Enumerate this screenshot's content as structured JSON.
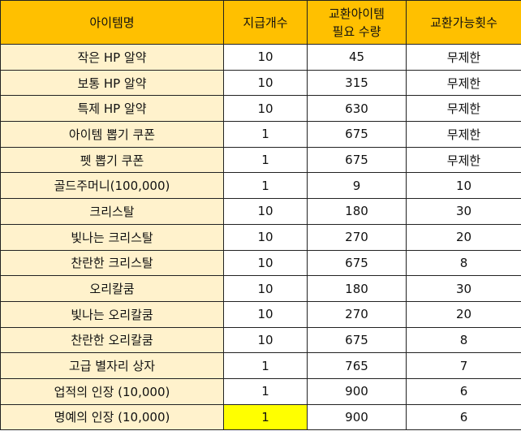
{
  "table": {
    "header": [
      "아이템명",
      "지급개수",
      "교환아이템\n필요 수량",
      "교환가능횟수"
    ],
    "rows": [
      [
        "작은 HP 알약",
        "10",
        "45",
        "무제한"
      ],
      [
        "보통 HP 알약",
        "10",
        "315",
        "무제한"
      ],
      [
        "특제 HP 알약",
        "10",
        "630",
        "무제한"
      ],
      [
        "아이템 뽑기 쿠폰",
        "1",
        "675",
        "무제한"
      ],
      [
        "펫 뽑기 쿠폰",
        "1",
        "675",
        "무제한"
      ],
      [
        "골드주머니(100,000)",
        "1",
        "9",
        "10"
      ],
      [
        "크리스탈",
        "10",
        "180",
        "30"
      ],
      [
        "빛나는 크리스탈",
        "10",
        "270",
        "20"
      ],
      [
        "찬란한 크리스탈",
        "10",
        "675",
        "8"
      ],
      [
        "오리칼쿰",
        "10",
        "180",
        "30"
      ],
      [
        "빛나는 오리칼쿰",
        "10",
        "270",
        "20"
      ],
      [
        "찬란한 오리칼쿰",
        "10",
        "675",
        "8"
      ],
      [
        "고급 별자리 상자",
        "1",
        "765",
        "7"
      ],
      [
        "업적의 인장 (10,000)",
        "1",
        "900",
        "6"
      ],
      [
        "명예의 인장 (10,000)",
        "1",
        "900",
        "6"
      ]
    ]
  }
}
